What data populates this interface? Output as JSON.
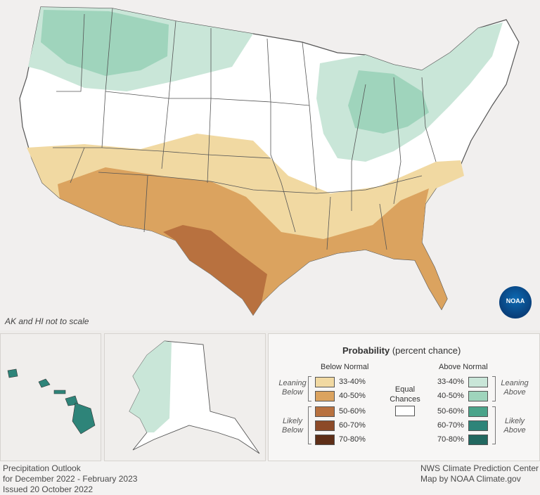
{
  "colors": {
    "background": "#f1efee",
    "state_fill": "#ffffff",
    "state_line": "#555555",
    "below_33_40": "#f1d9a2",
    "below_40_50": "#dba35f",
    "below_50_60": "#b8713f",
    "below_60_70": "#8c4a28",
    "below_70_80": "#5e2e17",
    "above_33_40": "#c9e6d8",
    "above_40_50": "#9fd4bc",
    "above_50_60": "#4aa48a",
    "above_60_70": "#2e8479",
    "above_70_80": "#226860"
  },
  "map": {
    "scale_note": "AK and HI not to scale",
    "logo_text": "NOAA"
  },
  "legend": {
    "title": "Probability",
    "title_suffix": "(percent chance)",
    "below_header": "Below Normal",
    "above_header": "Above Normal",
    "equal_chances": "Equal Chances",
    "leaning_below": "Leaning Below",
    "likely_below": "Likely Below",
    "leaning_above": "Leaning Above",
    "likely_above": "Likely Above",
    "below_items": [
      "33-40%",
      "40-50%",
      "50-60%",
      "60-70%",
      "70-80%"
    ],
    "above_items": [
      "33-40%",
      "40-50%",
      "50-60%",
      "60-70%",
      "70-80%"
    ]
  },
  "footer": {
    "line1": "Precipitation Outlook",
    "line2": "for December 2022 - February 2023",
    "line3": "Issued 20 October 2022",
    "right1": "NWS Climate Prediction Center",
    "right2": "Map by NOAA Climate.gov"
  }
}
